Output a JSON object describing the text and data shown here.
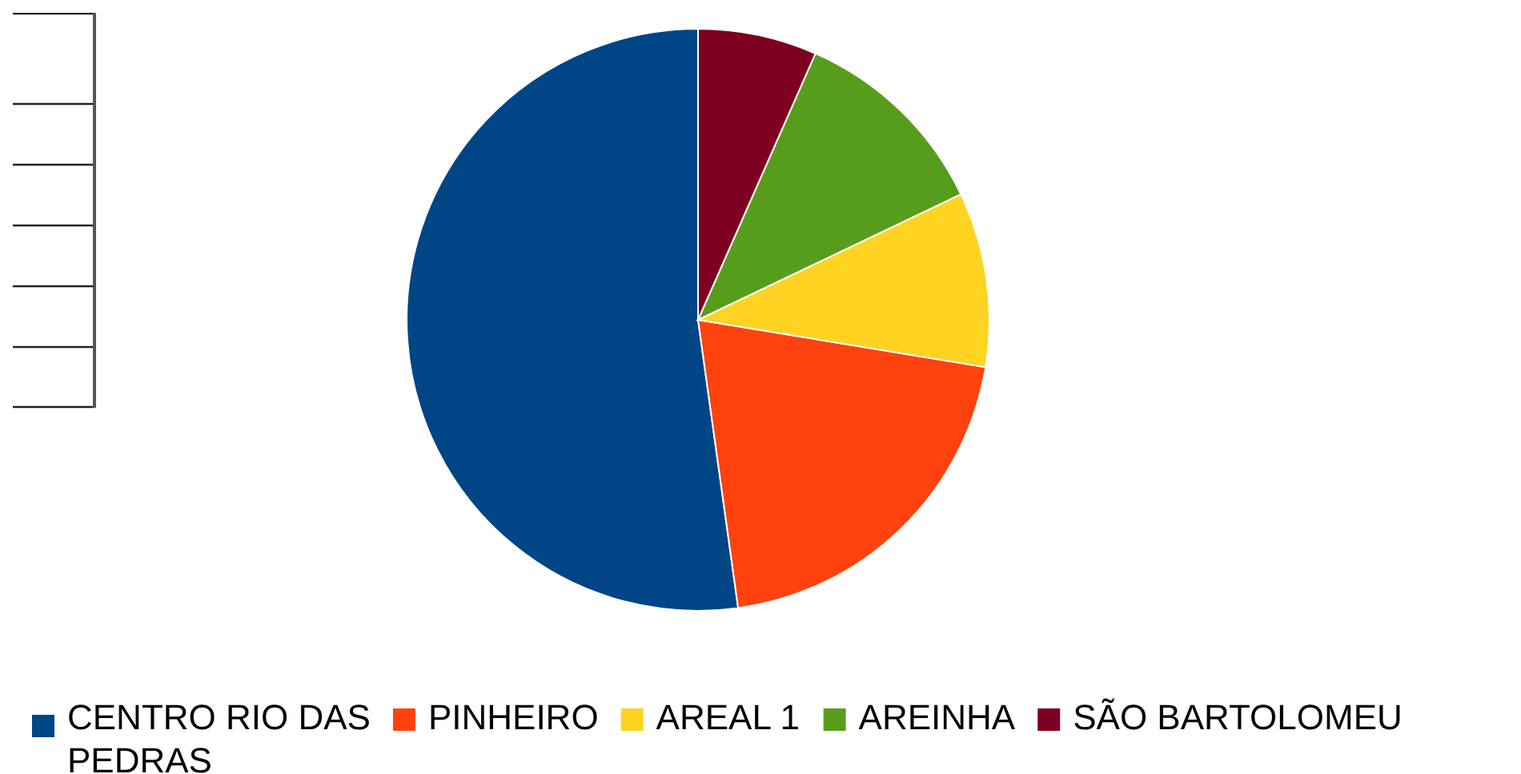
{
  "chart_data": {
    "type": "pie",
    "categories": [
      "CENTRO RIO DAS PEDRAS",
      "PINHEIRO",
      "AREAL 1",
      "AREINHA",
      "SÃO BARTOLOMEU"
    ],
    "values": [
      52.2,
      20.2,
      9.7,
      11.3,
      6.6
    ],
    "colors": [
      "#004586",
      "#ff420e",
      "#ffd320",
      "#579d1c",
      "#7e0021"
    ],
    "legend": "bottom"
  }
}
